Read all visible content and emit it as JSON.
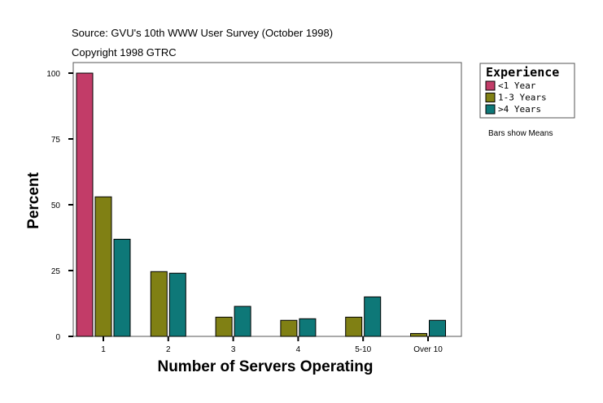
{
  "header": {
    "source": "Source: GVU's 10th WWW User Survey (October 1998)",
    "copyright": "Copyright 1998 GTRC"
  },
  "note": "Bars show Means",
  "chart_data": {
    "type": "bar",
    "xlabel": "Number of Servers Operating",
    "ylabel": "Percent",
    "ylim": [
      0,
      100
    ],
    "yticks": [
      0,
      25,
      50,
      75,
      100
    ],
    "grid": false,
    "legend_position": "top-right",
    "legend_title": "Experience",
    "categories": [
      "1",
      "2",
      "3",
      "4",
      "5-10",
      "Over 10"
    ],
    "series": [
      {
        "name": "<1 Year",
        "color": "#c23c68",
        "values": [
          100,
          null,
          null,
          null,
          null,
          null
        ]
      },
      {
        "name": "1-3 Years",
        "color": "#808014",
        "values": [
          53.0,
          24.6,
          7.3,
          6.1,
          7.3,
          1.1
        ]
      },
      {
        "name": ">4 Years",
        "color": "#0e7878",
        "values": [
          36.9,
          24.0,
          11.4,
          6.7,
          15.0,
          6.1
        ]
      }
    ]
  }
}
